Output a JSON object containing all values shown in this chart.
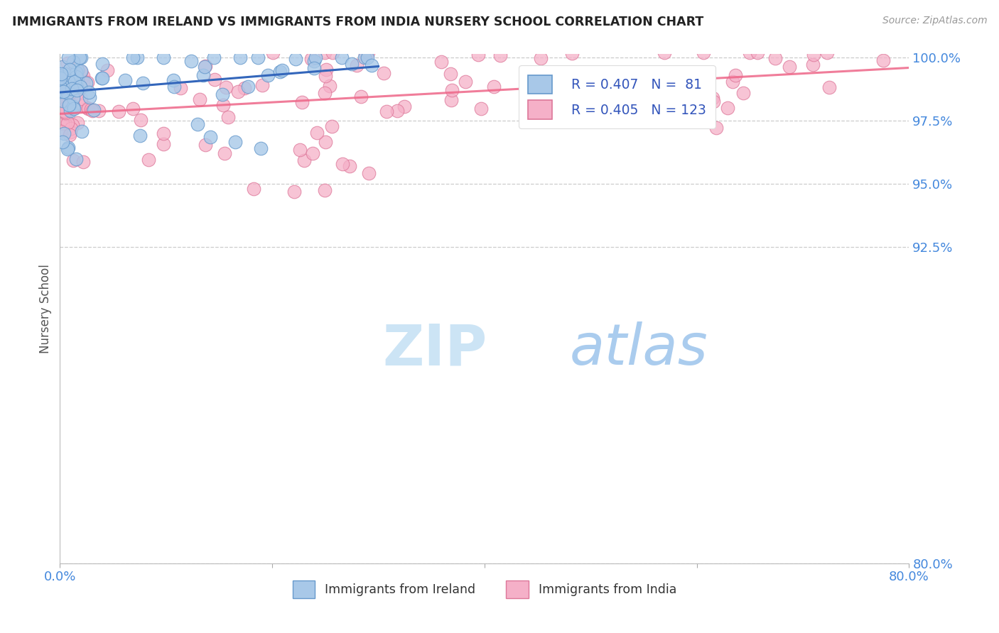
{
  "title": "IMMIGRANTS FROM IRELAND VS IMMIGRANTS FROM INDIA NURSERY SCHOOL CORRELATION CHART",
  "source": "Source: ZipAtlas.com",
  "ylabel": "Nursery School",
  "watermark_zip": "ZIP",
  "watermark_atlas": "atlas",
  "legend_items": [
    {
      "label": "Immigrants from Ireland",
      "color": "#a8c8e8",
      "edge": "#6699cc",
      "r": 0.407,
      "n": 81
    },
    {
      "label": "Immigrants from India",
      "color": "#f5b0c8",
      "edge": "#dd7799",
      "r": 0.405,
      "n": 123
    }
  ],
  "trendline_ireland": "#3366bb",
  "trendline_india": "#ee6688",
  "xmin": 0.0,
  "xmax": 80.0,
  "ymin": 80.0,
  "ymax": 100.0,
  "yticks": [
    80.0,
    92.5,
    95.0,
    97.5,
    100.0
  ],
  "ytick_labels": [
    "80.0%",
    "92.5%",
    "95.0%",
    "97.5%",
    "100.0%"
  ],
  "background_color": "#ffffff",
  "grid_color": "#cccccc",
  "title_color": "#222222",
  "source_color": "#999999",
  "watermark_color": "#cce4f5",
  "watermark_color2": "#aaccee",
  "axis_label_color": "#555555",
  "tick_label_color": "#4488dd",
  "legend_text_color": "#3355bb"
}
